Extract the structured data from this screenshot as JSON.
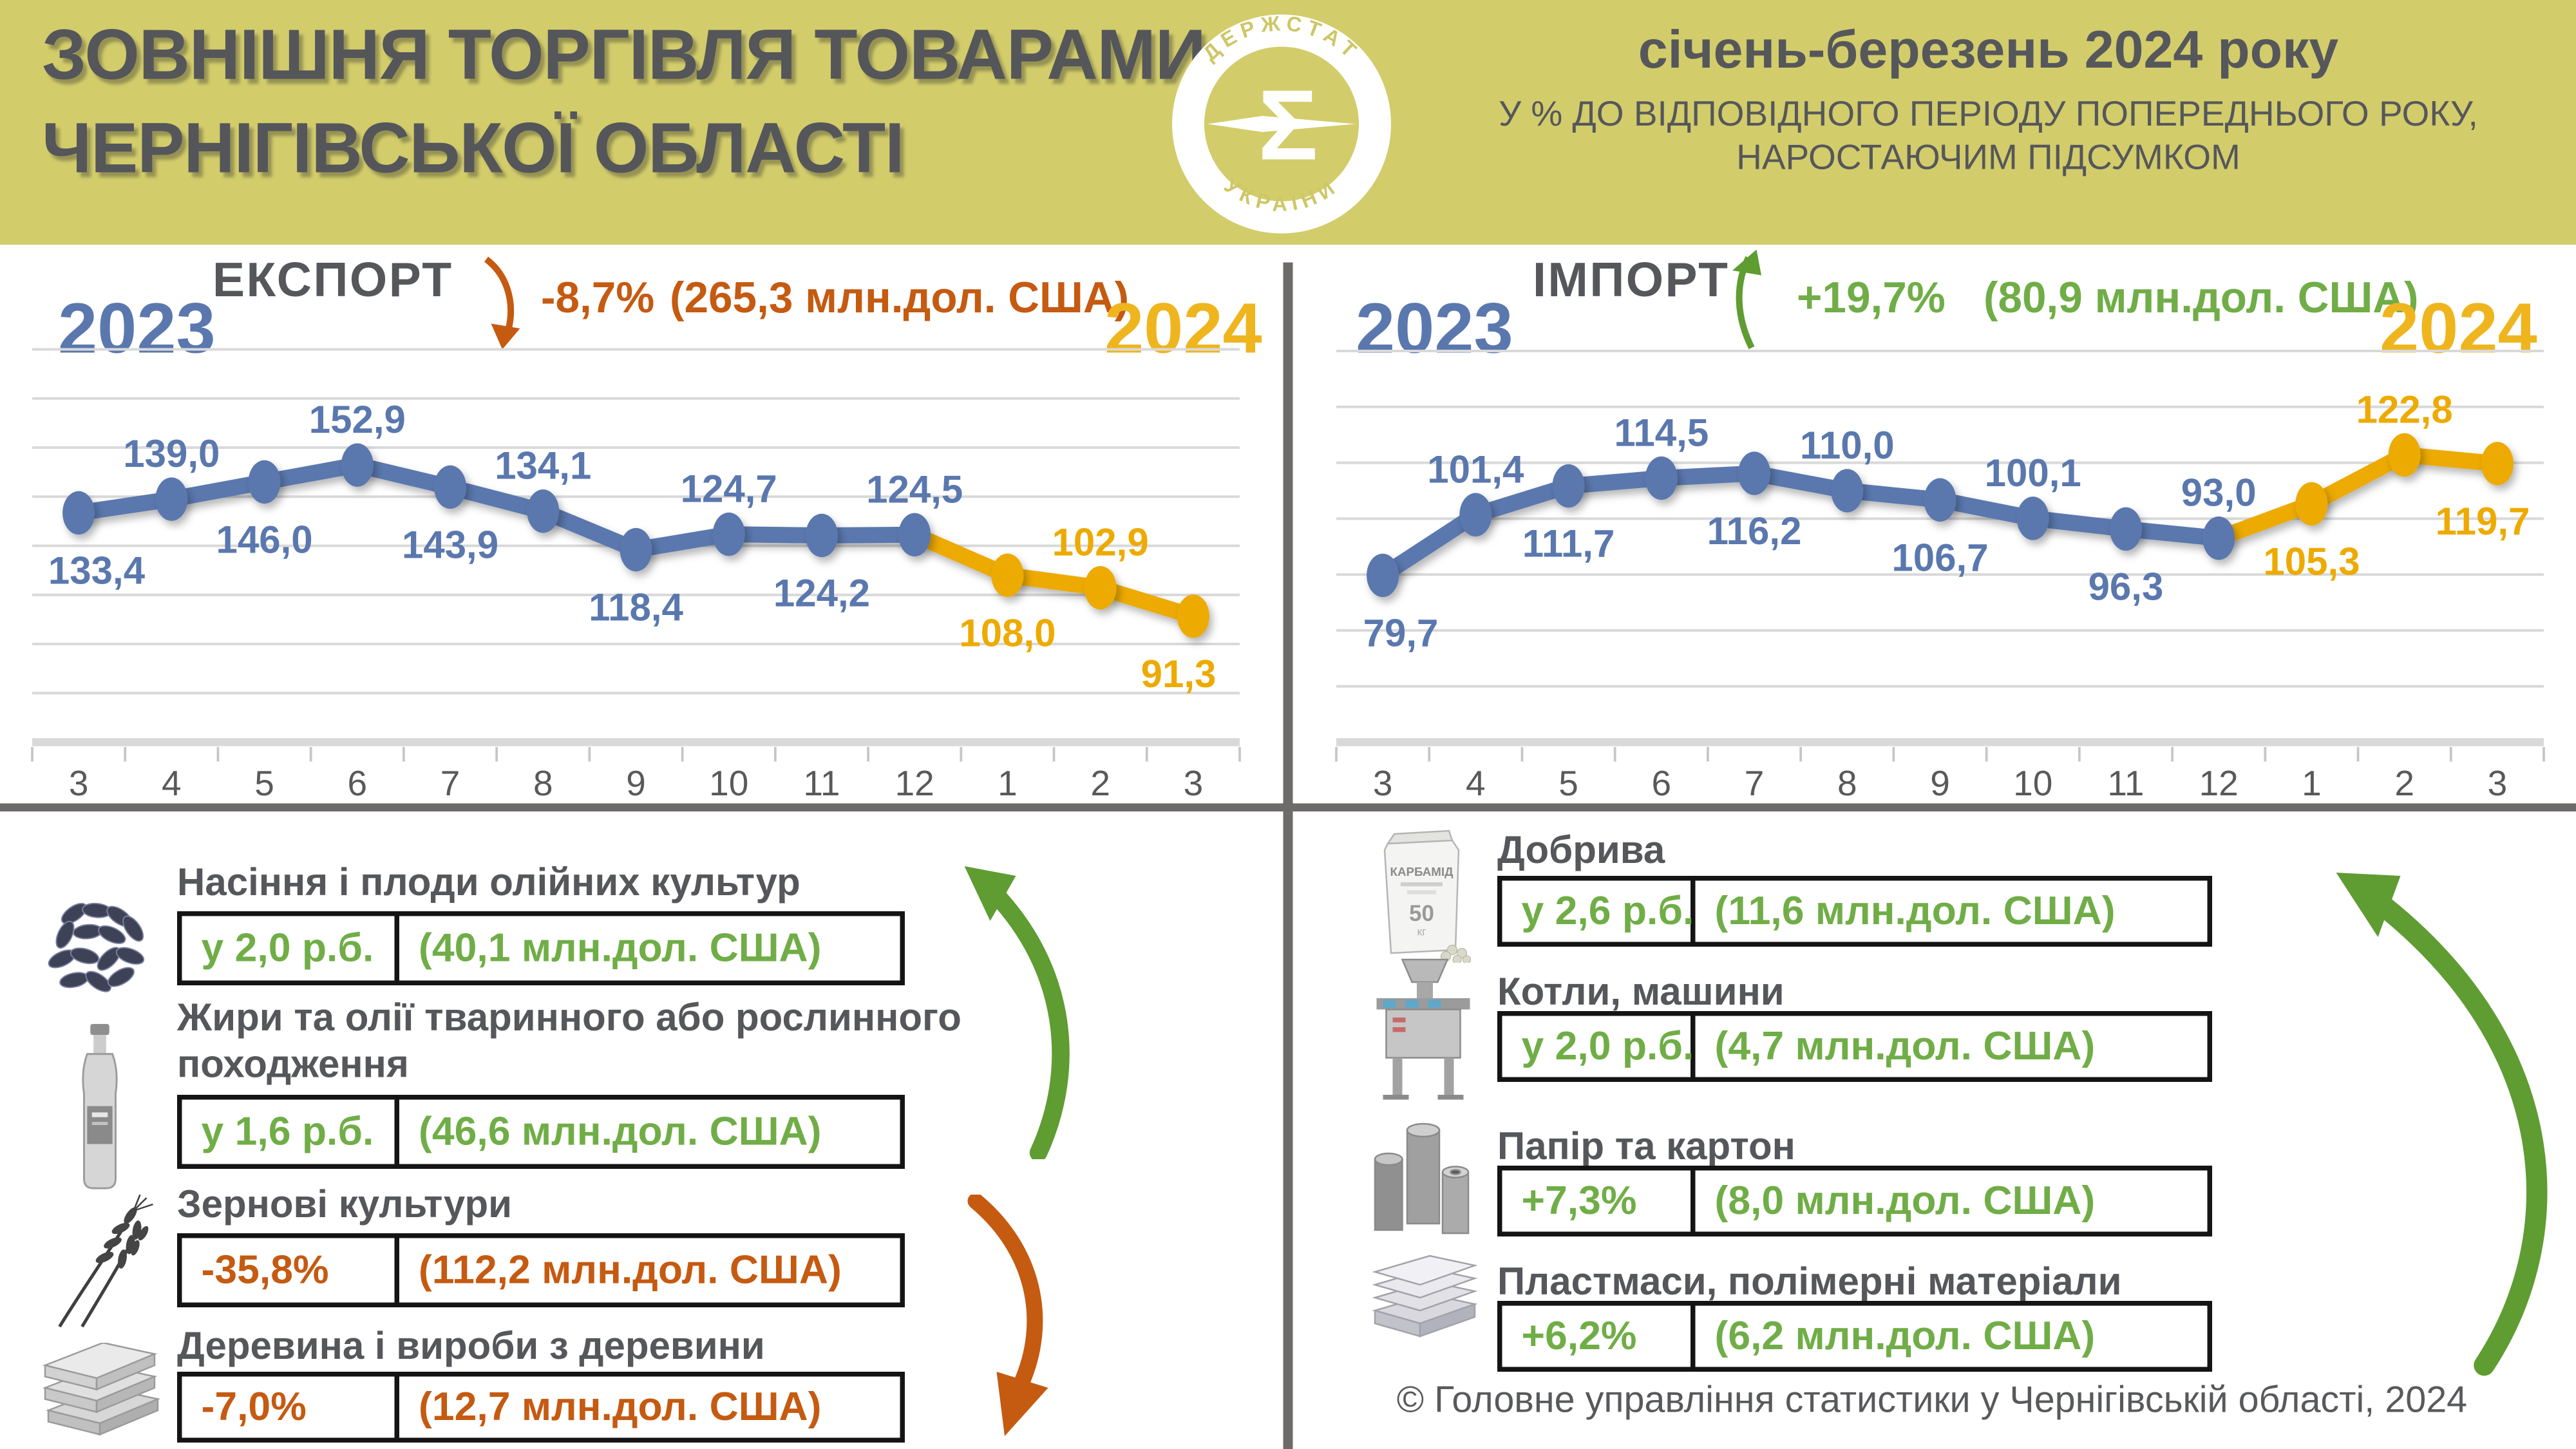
{
  "header": {
    "bg_color": "#d2cc6b",
    "title_line1": "ЗОВНІШНЯ ТОРГІВЛЯ ТОВАРАМИ",
    "title_line2": "ЧЕРНІГІВСЬКОЇ ОБЛАСТІ",
    "period": "січень-березень 2024 року",
    "subtitle_line1": "У % ДО ВІДПОВІДНОГО ПЕРІОДУ ПОПЕРЕДНЬОГО РОКУ,",
    "subtitle_line2": "НАРОСТАЮЧИМ ПІДСУМКОМ",
    "logo": {
      "top_text": "ДЕРЖСТАТ",
      "bottom_text": "УКРАЇНИ",
      "symbol": "Σ"
    }
  },
  "colors": {
    "olive": "#d2cc6b",
    "dark_text": "#56575b",
    "blue": "#5a78ae",
    "gold": "#edaa00",
    "gold_year": "#eeb51e",
    "orange": "#c55a11",
    "green": "#70ad47",
    "arrow_green": "#5f9c31",
    "arrow_orange": "#c55a11",
    "gridline": "#d9d9d9",
    "tick": "#c6c6c6",
    "axis_text": "#595959",
    "divider": "#6d6a6a"
  },
  "chart_data": [
    {
      "id": "export",
      "type": "line",
      "title": "ЕКСПОРТ",
      "change_label": "-8,7%",
      "value_label": "(265,3 млн.дол. США)",
      "trend": "down",
      "year_left": "2023",
      "year_right": "2024",
      "categories": [
        "3",
        "4",
        "5",
        "6",
        "7",
        "8",
        "9",
        "10",
        "11",
        "12",
        "1",
        "2",
        "3"
      ],
      "values": [
        133.4,
        139.0,
        146.0,
        152.9,
        143.9,
        134.1,
        118.4,
        124.7,
        124.2,
        124.5,
        108.0,
        102.9,
        91.3
      ],
      "labels": [
        "133,4",
        "139,0",
        "146,0",
        "152,9",
        "143,9",
        "134,1",
        "118,4",
        "124,7",
        "124,2",
        "124,5",
        "108,0",
        "102,9",
        "91,3"
      ],
      "series_split": {
        "year2023_count": 10,
        "year2024_count": 3
      },
      "ylim": [
        40,
        200
      ],
      "grid_step": 20,
      "grid_on": true,
      "xlabel": "",
      "ylabel": ""
    },
    {
      "id": "import",
      "type": "line",
      "title": "ІМПОРТ",
      "change_label": "+19,7%",
      "value_label": "(80,9 млн.дол. США)",
      "trend": "up",
      "year_left": "2023",
      "year_right": "2024",
      "categories": [
        "3",
        "4",
        "5",
        "6",
        "7",
        "8",
        "9",
        "10",
        "11",
        "12",
        "1",
        "2",
        "3"
      ],
      "values": [
        79.7,
        101.4,
        111.7,
        114.5,
        116.2,
        110.0,
        106.7,
        100.1,
        96.3,
        93.0,
        105.3,
        122.8,
        119.7
      ],
      "labels": [
        "79,7",
        "101,4",
        "111,7",
        "114,5",
        "116,2",
        "110,0",
        "106,7",
        "100,1",
        "96,3",
        "93,0",
        "105,3",
        "122,8",
        "119,7"
      ],
      "series_split": {
        "year2023_count": 10,
        "year2024_count": 3
      },
      "ylim": [
        20,
        160
      ],
      "grid_step": 20,
      "grid_on": true,
      "xlabel": "",
      "ylabel": ""
    }
  ],
  "commodities": {
    "export": [
      {
        "icon": "sunflower-seeds-icon",
        "title_lines": [
          "Насіння і плоди олійних культур"
        ],
        "change": "у 2,0 р.б.",
        "value": "(40,1 млн.дол. США)",
        "trend": "up"
      },
      {
        "icon": "oil-bottle-icon",
        "title_lines": [
          "Жири та олії тваринного або рослинного",
          "походження"
        ],
        "change": "у 1,6 р.б.",
        "value": "(46,6 млн.дол. США)",
        "trend": "up"
      },
      {
        "icon": "wheat-icon",
        "title_lines": [
          "Зернові культури"
        ],
        "change": "-35,8%",
        "value": "(112,2 млн.дол. США)",
        "trend": "down"
      },
      {
        "icon": "lumber-icon",
        "title_lines": [
          "Деревина і вироби з деревини"
        ],
        "change": "-7,0%",
        "value": "(12,7 млн.дол. США)",
        "trend": "down"
      }
    ],
    "import": [
      {
        "icon": "fertilizer-bag-icon",
        "title_lines": [
          "Добрива"
        ],
        "change": "у 2,6 р.б.",
        "value": "(11,6 млн.дол. США)",
        "trend": "up"
      },
      {
        "icon": "machine-icon",
        "title_lines": [
          "Котли, машини"
        ],
        "change": "у 2,0 р.б.",
        "value": "(4,7 млн.дол. США)",
        "trend": "up"
      },
      {
        "icon": "paper-rolls-icon",
        "title_lines": [
          "Папір та картон"
        ],
        "change": "+7,3%",
        "value": "(8,0 млн.дол. США)",
        "trend": "up"
      },
      {
        "icon": "plastic-sheets-icon",
        "title_lines": [
          "Пластмаси, полімерні матеріали"
        ],
        "change": "+6,2%",
        "value": "(6,2 млн.дол. США)",
        "trend": "up"
      }
    ]
  },
  "footer": "© Головне управління статистики у Чернігівській області, 2024"
}
